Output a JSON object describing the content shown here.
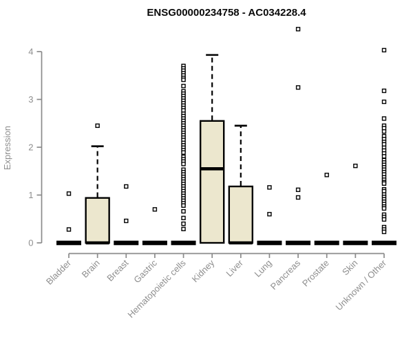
{
  "title": "ENSG00000234758 - AC034228.4",
  "chart_data": {
    "type": "boxplot",
    "title": "ENSG00000234758 - AC034228.4",
    "xlabel": "",
    "ylabel": "Expression",
    "yticks": [
      0,
      1,
      2,
      3,
      4
    ],
    "ylim": [
      0,
      4.6
    ],
    "grid": false,
    "legend": null,
    "colors": {
      "box_fill": "#ece7ce",
      "box_border": "#000000",
      "median": "#000000",
      "whisker": "#000000",
      "outlier_stroke": "#000000",
      "outlier_fill": "#ffffff",
      "axis_line": "#8a8a8a",
      "text": "#8e8e8e",
      "title_text": "#0a0a0a"
    },
    "categories": [
      "Bladder",
      "Brain",
      "Breast",
      "Gastric",
      "Hematopoietic cells",
      "Kidney",
      "Liver",
      "Lung",
      "Pancreas",
      "Prostate",
      "Skin",
      "Unknown / Other"
    ],
    "series": [
      {
        "name": "Bladder",
        "q1": 0,
        "median": 0,
        "q3": 0,
        "whisker_low": 0,
        "whisker_high": 0,
        "outliers": [
          1.03,
          0.28
        ]
      },
      {
        "name": "Brain",
        "q1": 0,
        "median": 0,
        "q3": 0.94,
        "whisker_low": 0,
        "whisker_high": 2.02,
        "outliers": [
          2.45
        ]
      },
      {
        "name": "Breast",
        "q1": 0,
        "median": 0,
        "q3": 0,
        "whisker_low": 0,
        "whisker_high": 0,
        "outliers": [
          1.18,
          0.46
        ]
      },
      {
        "name": "Gastric",
        "q1": 0,
        "median": 0,
        "q3": 0,
        "whisker_low": 0,
        "whisker_high": 0,
        "outliers": [
          0.7
        ]
      },
      {
        "name": "Hematopoietic cells",
        "q1": 0,
        "median": 0,
        "q3": 0,
        "whisker_low": 0,
        "whisker_high": 0,
        "outliers": [
          3.7,
          3.65,
          3.6,
          3.55,
          3.5,
          3.45,
          3.41,
          3.28,
          3.17,
          3.12,
          3.07,
          3.02,
          2.97,
          2.92,
          2.87,
          2.82,
          2.77,
          2.7,
          2.65,
          2.6,
          2.55,
          2.5,
          2.45,
          2.4,
          2.35,
          2.3,
          2.25,
          2.2,
          2.15,
          2.09,
          2.04,
          1.99,
          1.94,
          1.89,
          1.8,
          1.75,
          1.7,
          1.65,
          1.53,
          1.48,
          1.43,
          1.38,
          1.33,
          1.28,
          1.23,
          1.18,
          1.13,
          1.08,
          1.03,
          0.98,
          0.93,
          0.88,
          0.83,
          0.78,
          0.66,
          0.52,
          0.4,
          0.29
        ]
      },
      {
        "name": "Kidney",
        "q1": 0,
        "median": 1.55,
        "q3": 2.55,
        "whisker_low": 0,
        "whisker_high": 3.93,
        "outliers": []
      },
      {
        "name": "Liver",
        "q1": 0,
        "median": 0,
        "q3": 1.18,
        "whisker_low": 0,
        "whisker_high": 2.45,
        "outliers": []
      },
      {
        "name": "Lung",
        "q1": 0,
        "median": 0,
        "q3": 0,
        "whisker_low": 0,
        "whisker_high": 0,
        "outliers": [
          1.16,
          0.6
        ]
      },
      {
        "name": "Pancreas",
        "q1": 0,
        "median": 0,
        "q3": 0,
        "whisker_low": 0,
        "whisker_high": 0,
        "outliers": [
          4.47,
          3.25,
          1.11,
          0.95
        ]
      },
      {
        "name": "Prostate",
        "q1": 0,
        "median": 0,
        "q3": 0,
        "whisker_low": 0,
        "whisker_high": 0,
        "outliers": [
          1.42
        ]
      },
      {
        "name": "Skin",
        "q1": 0,
        "median": 0,
        "q3": 0,
        "whisker_low": 0,
        "whisker_high": 0,
        "outliers": [
          1.61
        ]
      },
      {
        "name": "Unknown / Other",
        "q1": 0,
        "median": 0,
        "q3": 0,
        "whisker_low": 0,
        "whisker_high": 0,
        "outliers": [
          4.03,
          3.18,
          2.95,
          2.6,
          2.45,
          2.4,
          2.33,
          2.23,
          2.17,
          2.11,
          2.06,
          1.99,
          1.93,
          1.87,
          1.81,
          1.73,
          1.68,
          1.63,
          1.58,
          1.53,
          1.48,
          1.43,
          1.37,
          1.32,
          1.27,
          1.24,
          1.12,
          1.08,
          1.01,
          0.96,
          0.91,
          0.86,
          0.81,
          0.76,
          0.72,
          0.59,
          0.54,
          0.49,
          0.33,
          0.28,
          0.23
        ]
      }
    ]
  }
}
